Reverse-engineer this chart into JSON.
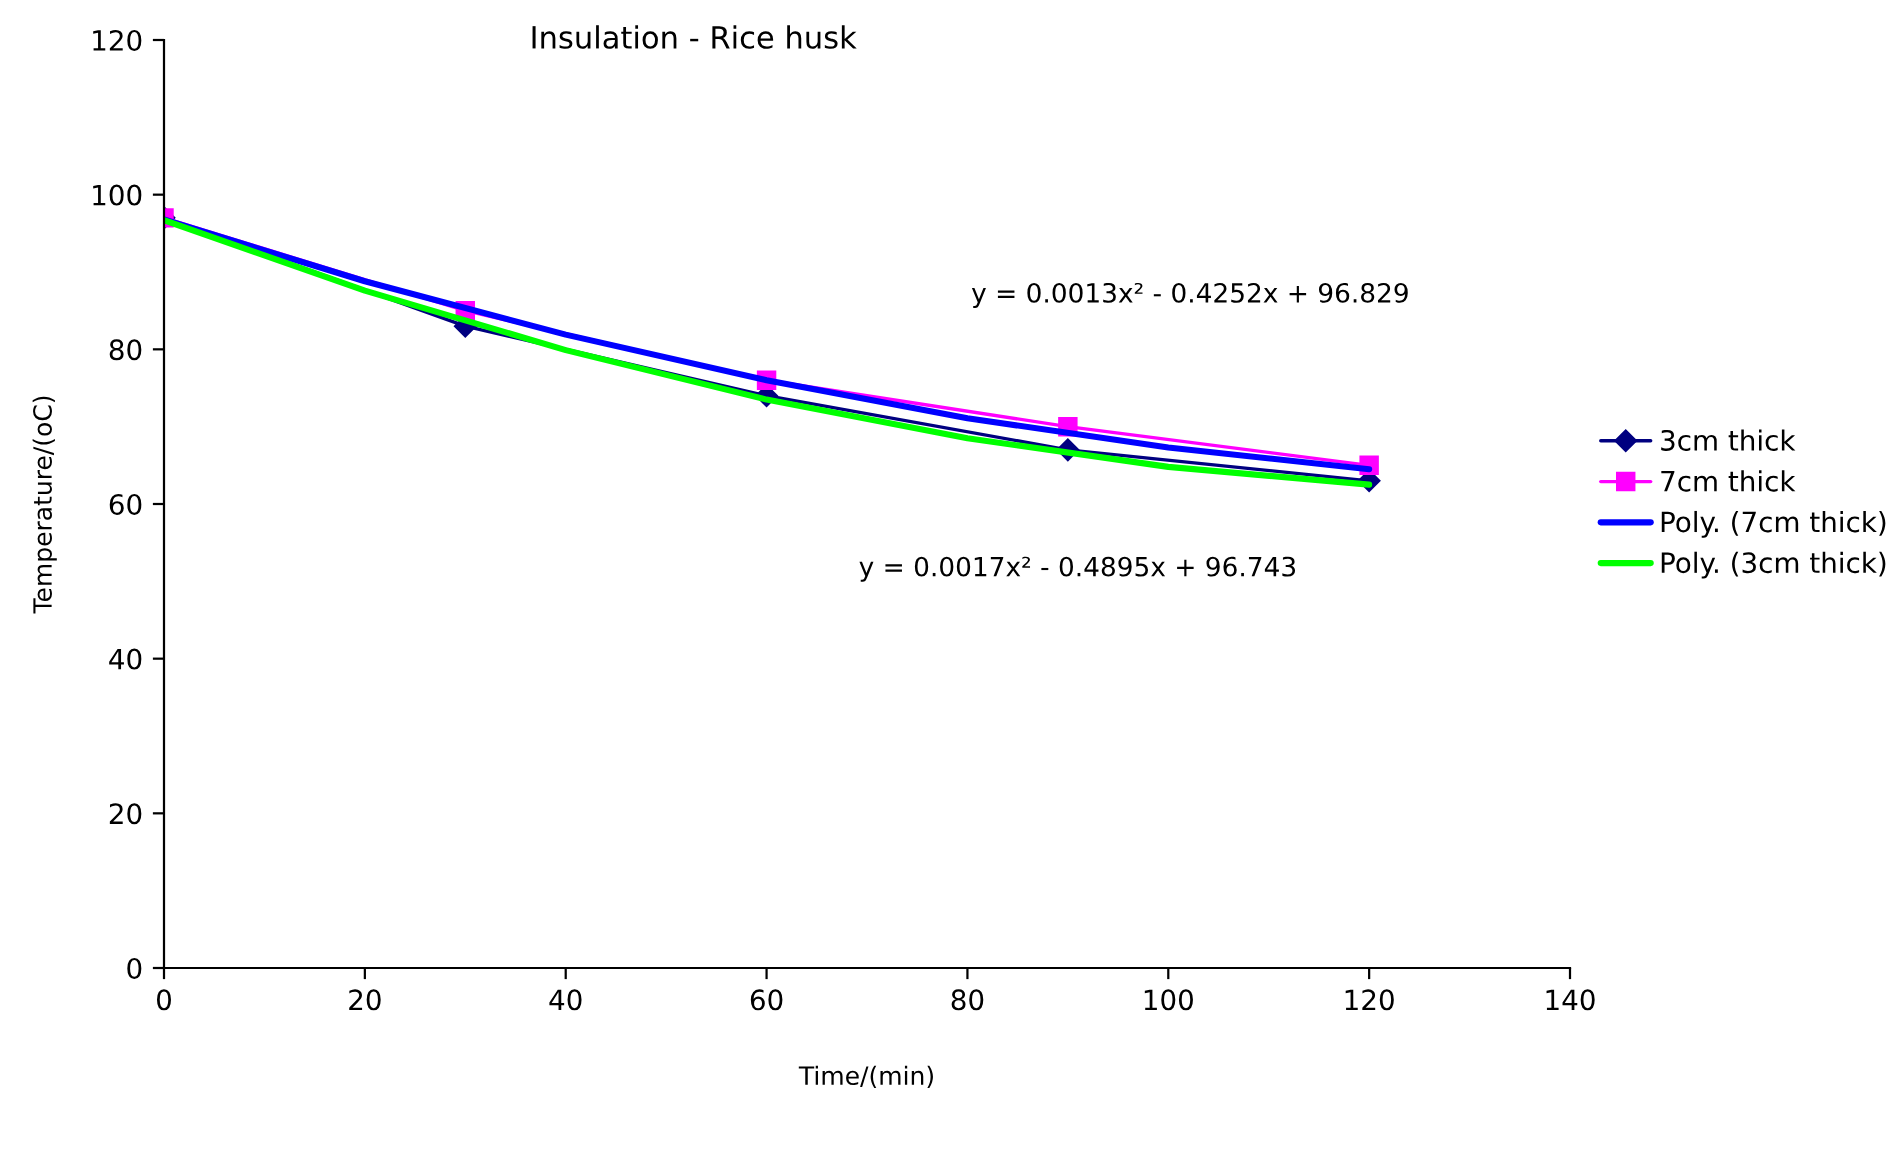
{
  "chart_data": {
    "type": "line",
    "title": "Insulation - Rice husk",
    "xlabel": "Time/(min)",
    "ylabel": "Temperature/(oC)",
    "xlim": [
      0,
      140
    ],
    "xticks": [
      0,
      20,
      40,
      60,
      80,
      100,
      120,
      140
    ],
    "ylim": [
      0,
      120
    ],
    "yticks": [
      0,
      20,
      40,
      60,
      80,
      100,
      120
    ],
    "grid": false,
    "legend": "right",
    "series": [
      {
        "name": "3cm thick",
        "color": "#000080",
        "marker": "diamond",
        "x": [
          0,
          30,
          60,
          90,
          120
        ],
        "values": [
          97,
          83,
          74,
          67,
          63
        ]
      },
      {
        "name": "7cm thick",
        "color": "#ff00ff",
        "marker": "square",
        "x": [
          0,
          30,
          60,
          90,
          120
        ],
        "values": [
          97,
          85,
          76,
          70,
          65
        ]
      },
      {
        "name": "Poly. (7cm thick)",
        "color": "#0000ff",
        "marker": "none",
        "x": [
          0,
          20,
          40,
          60,
          80,
          100,
          120
        ],
        "values": [
          96.8,
          88.8,
          81.9,
          76.0,
          71.1,
          67.3,
          64.5
        ]
      },
      {
        "name": "Poly. (3cm thick)",
        "color": "#00ff00",
        "marker": "none",
        "x": [
          0,
          20,
          40,
          60,
          80,
          100,
          120
        ],
        "values": [
          96.7,
          87.6,
          79.9,
          73.5,
          68.5,
          64.8,
          62.5
        ]
      }
    ],
    "annotations": [
      "y = 0.0013x² - 0.4252x + 96.829",
      "y = 0.0017x² - 0.4895x + 96.743"
    ]
  }
}
